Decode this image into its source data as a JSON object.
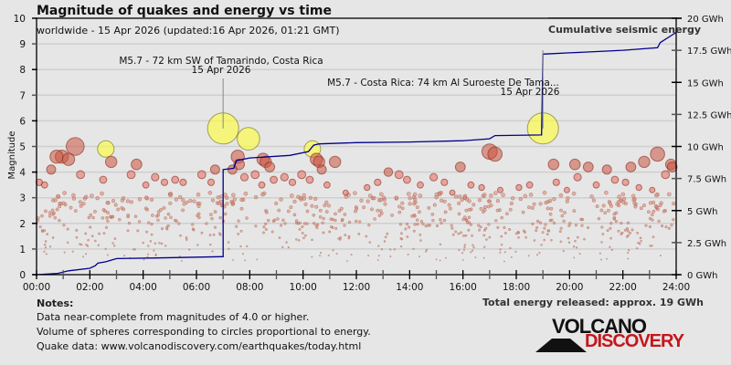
{
  "header": {
    "title": "Magnitude of quakes and energy vs time",
    "subtitle": "worldwide - 15 Apr 2026 (updated:16 Apr 2026, 01:21 GMT)",
    "legend_label": "Cumulative seismic energy"
  },
  "notes": {
    "title": "Notes:",
    "lines": [
      "Data near-complete from magnitudes of 4.0 or higher.",
      "Volume of spheres corresponding to circles proportional to energy.",
      "Quake data: www.volcanodiscovery.com/earthquakes/today.html"
    ]
  },
  "total_energy": "Total energy released: approx. 19 GWh",
  "logo": {
    "top": "VOLCANO",
    "bottom": "DISCOVERY",
    "top_color": "#111111",
    "bottom_color": "#c4161c"
  },
  "colors": {
    "energy_line": "#00008b",
    "large_quake_fill": "#ffff33",
    "quake_fill": "#cd5c5c",
    "background": "#e6e6e6"
  },
  "chart_data": {
    "type": "scatter",
    "title": "Magnitude of quakes and energy vs time",
    "xlabel": "",
    "ylabel": "Magnitude",
    "y2label": "Cumulative seismic energy",
    "xlim": [
      0,
      24
    ],
    "ylim": [
      0,
      10
    ],
    "y2lim": [
      0,
      20
    ],
    "x_ticks": [
      "00:00",
      "02:00",
      "04:00",
      "06:00",
      "08:00",
      "10:00",
      "12:00",
      "14:00",
      "16:00",
      "18:00",
      "20:00",
      "22:00",
      "24:00"
    ],
    "y_ticks": [
      "0",
      "1",
      "2",
      "3",
      "4",
      "5",
      "6",
      "7",
      "8",
      "9",
      "10"
    ],
    "y2_ticks": [
      "0 GWh",
      "2.5 GWh",
      "5 GWh",
      "7.5 GWh",
      "10 GWh",
      "12.5 GWh",
      "15 GWh",
      "17.5 GWh",
      "20 GWh"
    ],
    "grid": true,
    "legend": "top-right",
    "annotations": [
      {
        "text": "M5.7 - 72 km SW of Tamarindo, Costa Rica",
        "date": "15 Apr 2026",
        "time": 7.0,
        "mag": 5.7
      },
      {
        "text": "M5.7 - Costa Rica: 74 km Al Suroeste De Tama...",
        "date": "15 Apr 2026",
        "time": 19.0,
        "mag": 5.7
      }
    ],
    "energy_series": {
      "name": "Cumulative seismic energy",
      "unit": "GWh",
      "points": [
        [
          0,
          0
        ],
        [
          0.8,
          0.1
        ],
        [
          1.2,
          0.3
        ],
        [
          2.0,
          0.5
        ],
        [
          2.2,
          0.7
        ],
        [
          2.3,
          0.9
        ],
        [
          2.6,
          1.0
        ],
        [
          3.0,
          1.25
        ],
        [
          4.5,
          1.3
        ],
        [
          6.9,
          1.4
        ],
        [
          7.0,
          1.4
        ],
        [
          7.0,
          8.2
        ],
        [
          7.4,
          8.3
        ],
        [
          7.5,
          8.9
        ],
        [
          8.0,
          9.1
        ],
        [
          9.5,
          9.3
        ],
        [
          10.2,
          9.6
        ],
        [
          10.4,
          10.1
        ],
        [
          10.6,
          10.2
        ],
        [
          12.0,
          10.3
        ],
        [
          14.0,
          10.35
        ],
        [
          16.0,
          10.45
        ],
        [
          17.0,
          10.6
        ],
        [
          17.2,
          10.85
        ],
        [
          18.95,
          10.9
        ],
        [
          19.0,
          17.2
        ],
        [
          20.0,
          17.3
        ],
        [
          22.0,
          17.5
        ],
        [
          23.3,
          17.7
        ],
        [
          23.4,
          18.1
        ],
        [
          24.0,
          18.9
        ]
      ]
    },
    "quakes": [
      {
        "t": 7.0,
        "m": 5.7
      },
      {
        "t": 19.0,
        "m": 5.7
      },
      {
        "t": 7.95,
        "m": 5.3
      },
      {
        "t": 1.45,
        "m": 5.0
      },
      {
        "t": 10.35,
        "m": 4.9
      },
      {
        "t": 2.6,
        "m": 4.9
      },
      {
        "t": 0.95,
        "m": 4.6
      },
      {
        "t": 0.75,
        "m": 4.6
      },
      {
        "t": 7.6,
        "m": 4.3
      },
      {
        "t": 10.6,
        "m": 4.4
      },
      {
        "t": 10.5,
        "m": 4.5
      },
      {
        "t": 17.0,
        "m": 4.8
      },
      {
        "t": 17.2,
        "m": 4.7
      },
      {
        "t": 23.3,
        "m": 4.7
      },
      {
        "t": 2.8,
        "m": 4.4
      },
      {
        "t": 0.55,
        "m": 4.1
      },
      {
        "t": 1.2,
        "m": 4.5
      },
      {
        "t": 3.75,
        "m": 4.3
      },
      {
        "t": 8.5,
        "m": 4.5
      },
      {
        "t": 8.6,
        "m": 4.4
      },
      {
        "t": 8.75,
        "m": 4.2
      },
      {
        "t": 6.7,
        "m": 4.1
      },
      {
        "t": 7.35,
        "m": 4.1
      },
      {
        "t": 11.2,
        "m": 4.4
      },
      {
        "t": 15.9,
        "m": 4.2
      },
      {
        "t": 19.4,
        "m": 4.3
      },
      {
        "t": 20.7,
        "m": 4.2
      },
      {
        "t": 21.4,
        "m": 4.1
      },
      {
        "t": 22.8,
        "m": 4.4
      },
      {
        "t": 23.8,
        "m": 4.3
      },
      {
        "t": 23.85,
        "m": 4.2
      },
      {
        "t": 22.3,
        "m": 4.2
      },
      {
        "t": 20.2,
        "m": 4.3
      },
      {
        "t": 7.55,
        "m": 4.6
      },
      {
        "t": 10.7,
        "m": 4.1
      },
      {
        "t": 0.1,
        "m": 3.6
      },
      {
        "t": 0.3,
        "m": 3.5
      },
      {
        "t": 1.65,
        "m": 3.9
      },
      {
        "t": 2.5,
        "m": 3.7
      },
      {
        "t": 3.55,
        "m": 3.9
      },
      {
        "t": 4.1,
        "m": 3.5
      },
      {
        "t": 4.45,
        "m": 3.8
      },
      {
        "t": 4.8,
        "m": 3.6
      },
      {
        "t": 5.2,
        "m": 3.7
      },
      {
        "t": 5.5,
        "m": 3.6
      },
      {
        "t": 6.2,
        "m": 3.9
      },
      {
        "t": 6.55,
        "m": 3.6
      },
      {
        "t": 7.8,
        "m": 3.8
      },
      {
        "t": 8.2,
        "m": 3.9
      },
      {
        "t": 8.45,
        "m": 3.5
      },
      {
        "t": 8.9,
        "m": 3.7
      },
      {
        "t": 9.3,
        "m": 3.8
      },
      {
        "t": 9.6,
        "m": 3.6
      },
      {
        "t": 9.95,
        "m": 3.9
      },
      {
        "t": 10.25,
        "m": 3.7
      },
      {
        "t": 10.9,
        "m": 3.5
      },
      {
        "t": 11.6,
        "m": 3.2
      },
      {
        "t": 12.4,
        "m": 3.4
      },
      {
        "t": 12.8,
        "m": 3.6
      },
      {
        "t": 13.2,
        "m": 4.0
      },
      {
        "t": 13.6,
        "m": 3.9
      },
      {
        "t": 13.9,
        "m": 3.7
      },
      {
        "t": 14.4,
        "m": 3.5
      },
      {
        "t": 14.9,
        "m": 3.8
      },
      {
        "t": 15.3,
        "m": 3.6
      },
      {
        "t": 15.6,
        "m": 3.2
      },
      {
        "t": 16.3,
        "m": 3.5
      },
      {
        "t": 16.7,
        "m": 3.4
      },
      {
        "t": 17.4,
        "m": 3.3
      },
      {
        "t": 18.1,
        "m": 3.4
      },
      {
        "t": 18.5,
        "m": 3.5
      },
      {
        "t": 19.5,
        "m": 3.6
      },
      {
        "t": 19.9,
        "m": 3.3
      },
      {
        "t": 20.3,
        "m": 3.8
      },
      {
        "t": 21.0,
        "m": 3.5
      },
      {
        "t": 21.7,
        "m": 3.7
      },
      {
        "t": 22.1,
        "m": 3.6
      },
      {
        "t": 22.6,
        "m": 3.4
      },
      {
        "t": 23.1,
        "m": 3.3
      },
      {
        "t": 23.6,
        "m": 3.9
      }
    ],
    "small_quake_count": 700,
    "small_quake_mag_range": [
      0.5,
      3.2
    ]
  }
}
